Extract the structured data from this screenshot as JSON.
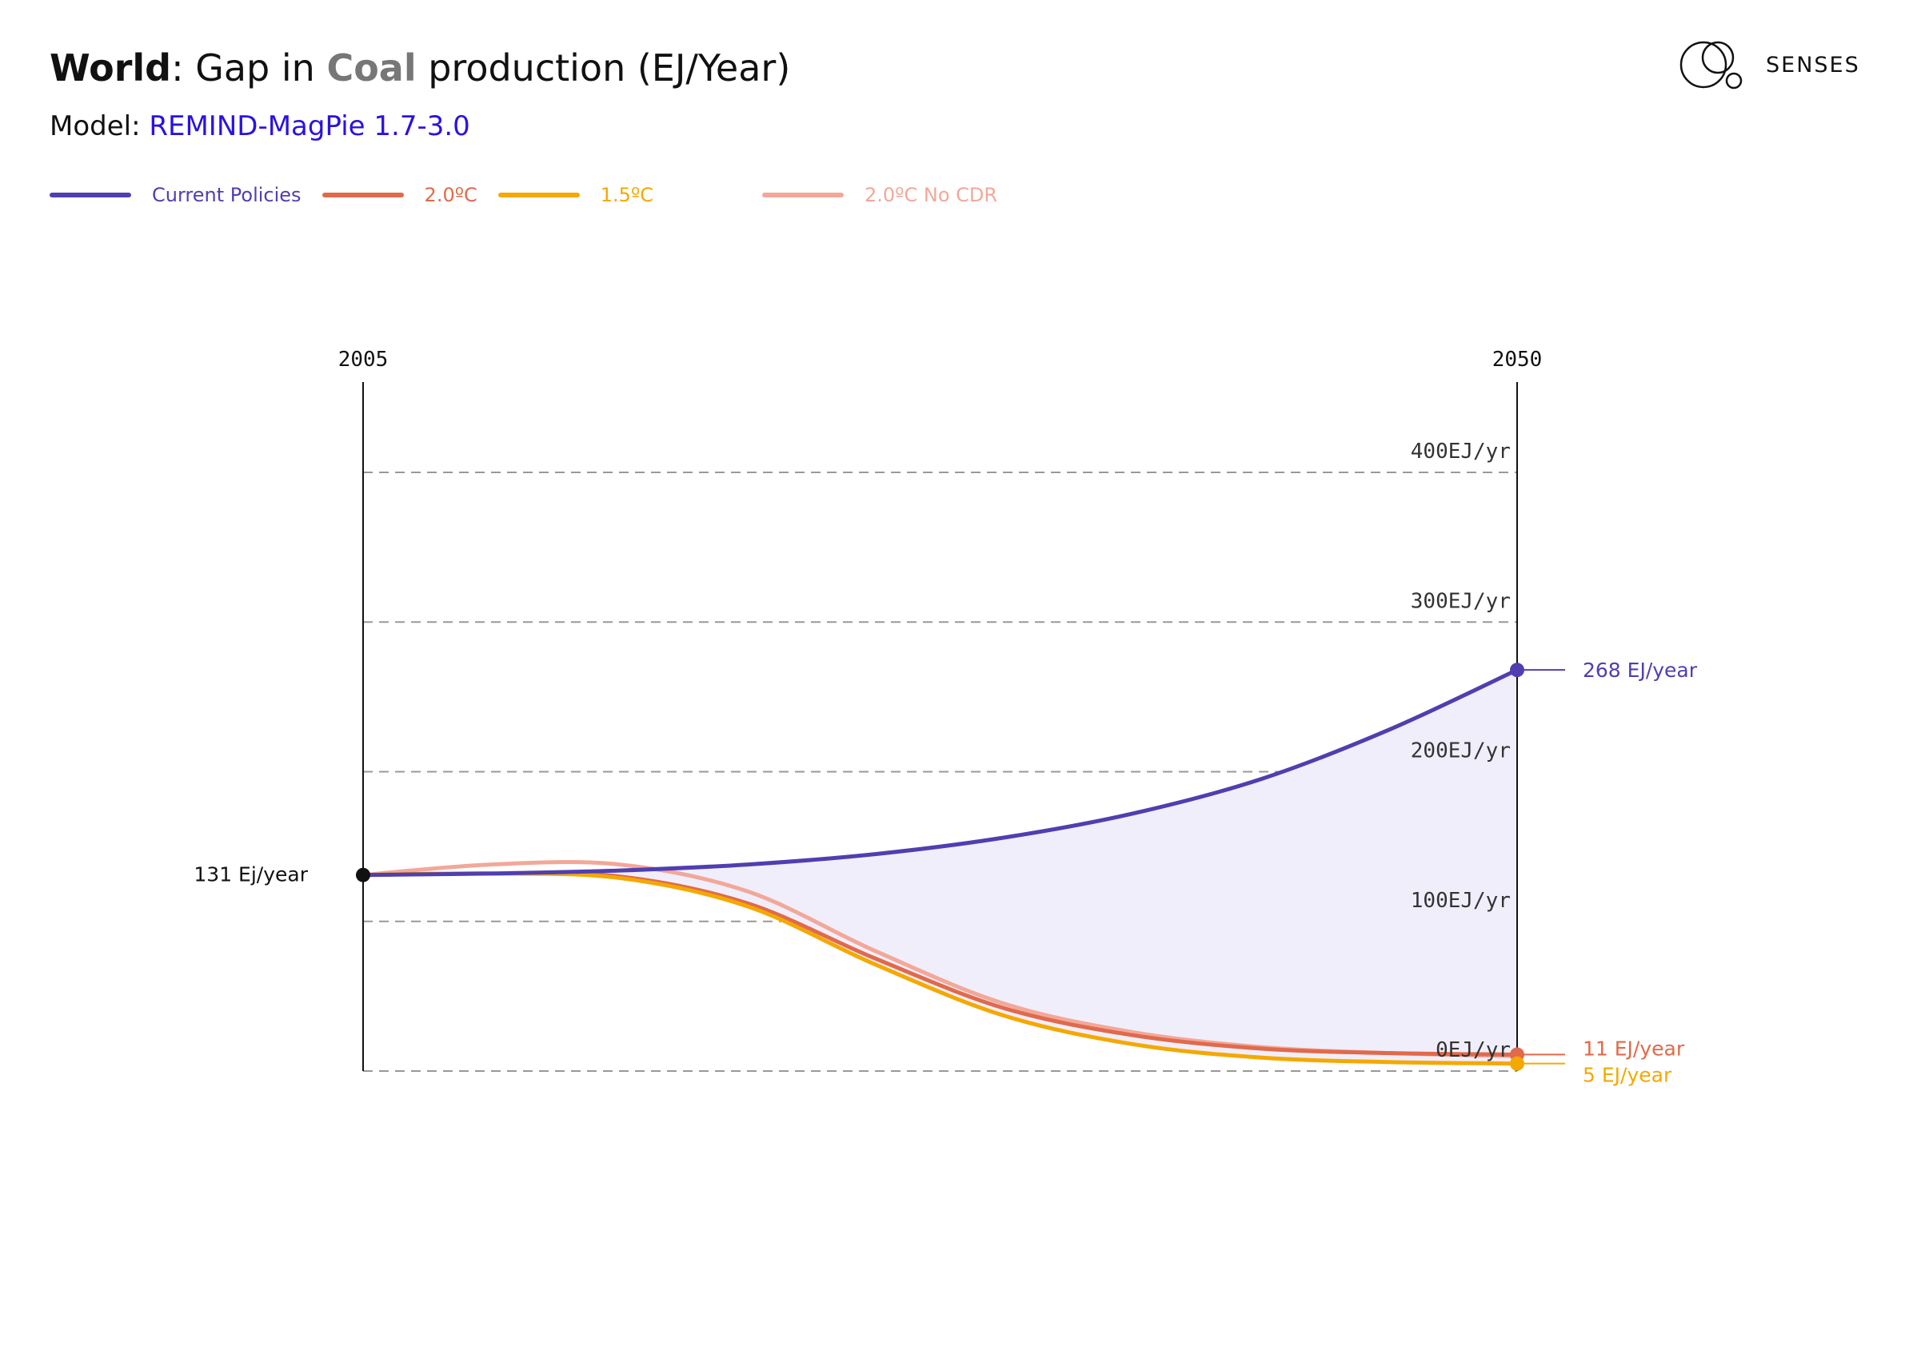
{
  "header": {
    "region": "World",
    "title_mid": ": Gap in ",
    "fuel": "Coal",
    "title_end": " production (EJ/Year)",
    "model_label": "Model: ",
    "model_name": "REMIND-MagPie 1.7-3.0"
  },
  "logo": {
    "text": "SENSES",
    "icon": "senses-logo-icon"
  },
  "chart_data": {
    "type": "line",
    "x": [
      2005,
      2010,
      2015,
      2020,
      2025,
      2030,
      2035,
      2040,
      2045,
      2050
    ],
    "x_tick_labels": [
      "2005",
      "2050"
    ],
    "y_ticks": [
      0,
      100,
      200,
      300,
      400
    ],
    "y_tick_labels": [
      "0EJ/yr",
      "100EJ/yr",
      "200EJ/yr",
      "300EJ/yr",
      "400EJ/yr"
    ],
    "ylim": [
      0,
      400
    ],
    "xlim": [
      2005,
      2050
    ],
    "grid": true,
    "legend_position": "top-left",
    "start_label": "131 Ej/year",
    "gap_fill_color": "#f0eefb",
    "series": [
      {
        "name": "Current Policies",
        "color": "#4f3fb0",
        "values": [
          131,
          132,
          134,
          138,
          145,
          156,
          172,
          195,
          228,
          268
        ],
        "end_label": "268 EJ/year"
      },
      {
        "name": "2.0ºC",
        "color": "#e06a4b",
        "values": [
          131,
          132,
          130,
          112,
          75,
          42,
          24,
          15,
          12,
          11
        ],
        "end_label": "11 EJ/year"
      },
      {
        "name": "1.5ºC",
        "color": "#f5a800",
        "values": [
          131,
          132,
          129,
          110,
          71,
          37,
          18,
          9,
          6,
          5
        ],
        "end_label": "5 EJ/year"
      },
      {
        "name": "2.0ºC No CDR",
        "color": "#f2a899",
        "values": [
          131,
          138,
          138,
          120,
          80,
          45,
          26,
          16,
          12,
          10
        ],
        "end_label": ""
      }
    ]
  }
}
